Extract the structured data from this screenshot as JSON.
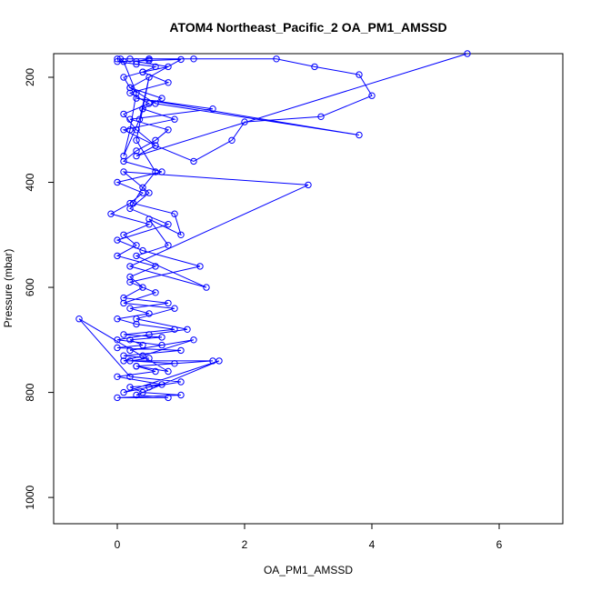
{
  "chart_data": {
    "type": "line",
    "title": "ATOM4 Northeast_Pacific_2 OA_PM1_AMSSD",
    "xlabel": "OA_PM1_AMSSD",
    "ylabel": "Pressure (mbar)",
    "xlim": [
      -1.0,
      7.0
    ],
    "ylim": [
      1050,
      155
    ],
    "y_reversed": true,
    "grid": false,
    "xticks": [
      0,
      2,
      4,
      6
    ],
    "yticks": [
      200,
      400,
      600,
      800,
      1000
    ],
    "xtick_labels": [
      "0",
      "2",
      "4",
      "6"
    ],
    "ytick_labels": [
      "200",
      "400",
      "600",
      "800",
      "1000"
    ],
    "series_color": "#0000ff",
    "series": [
      {
        "x": [
          0.05,
          0.1,
          0.3,
          0.2,
          0.1,
          0.35,
          0.5,
          0.4,
          0.3,
          0.6,
          0.4,
          0.25,
          0.9,
          1.0,
          0.5,
          0.8,
          0.3,
          1.4,
          0.2,
          3.0,
          0.1,
          0.5,
          0.2,
          0.8,
          0.0,
          0.4,
          1.3,
          0.2,
          0.6,
          0.1,
          0.9,
          0.3,
          1.1,
          0.5,
          0.0,
          0.7,
          0.2,
          1.2,
          0.4,
          0.1,
          1.5,
          0.3,
          0.8,
          -0.6,
          0.2,
          1.0,
          0.5,
          0.1,
          1.6,
          0.3,
          0.8,
          0.0,
          1.0,
          0.4,
          0.2,
          0.7,
          0.0,
          0.6,
          0.3,
          0.9,
          0.2,
          0.5,
          0.1,
          1.0,
          0.0,
          0.4,
          0.2,
          0.7,
          0.1,
          0.9,
          0.3,
          0.0,
          0.5,
          0.2,
          0.8,
          0.1,
          0.4,
          0.2,
          0.6,
          0.0,
          0.3,
          0.1,
          0.5,
          -0.1,
          0.2,
          0.4,
          0.0,
          0.7,
          0.1,
          0.3,
          0.6,
          0.8,
          0.2,
          1.5,
          0.3,
          3.8,
          0.6,
          0.2,
          0.1,
          0.4,
          0.8,
          0.3,
          0.5
        ],
        "y": [
          165,
          170,
          230,
          300,
          350,
          280,
          200,
          260,
          320,
          380,
          410,
          440,
          460,
          500,
          470,
          520,
          540,
          600,
          560,
          405,
          380,
          420,
          450,
          480,
          510,
          530,
          560,
          590,
          610,
          630,
          640,
          660,
          680,
          690,
          700,
          710,
          720,
          700,
          730,
          740,
          740,
          750,
          760,
          660,
          770,
          780,
          790,
          800,
          740,
          805,
          810,
          810,
          805,
          800,
          790,
          785,
          770,
          760,
          750,
          745,
          740,
          735,
          730,
          720,
          715,
          710,
          700,
          695,
          690,
          680,
          670,
          660,
          650,
          640,
          630,
          620,
          600,
          580,
          560,
          540,
          520,
          500,
          480,
          460,
          440,
          420,
          400,
          380,
          360,
          340,
          320,
          300,
          280,
          260,
          240,
          310,
          250,
          220,
          200,
          190,
          180,
          170,
          165
        ]
      },
      {
        "x": [
          0.0,
          0.2,
          0.5,
          1.2,
          2.5,
          3.1,
          3.8,
          4.0,
          3.2,
          2.0,
          1.8,
          1.2,
          0.6,
          0.3,
          0.1,
          0.5,
          0.2,
          0.8,
          0.4,
          0.6,
          0.3,
          0.0,
          0.5,
          1.0,
          0.2,
          0.7,
          0.4,
          0.9,
          0.1,
          0.6,
          0.3,
          5.5
        ],
        "y": [
          165,
          165,
          165,
          165,
          165,
          180,
          195,
          235,
          275,
          285,
          320,
          360,
          330,
          300,
          270,
          250,
          230,
          210,
          190,
          180,
          175,
          170,
          168,
          166,
          220,
          240,
          260,
          280,
          300,
          330,
          350,
          155
        ]
      }
    ]
  }
}
